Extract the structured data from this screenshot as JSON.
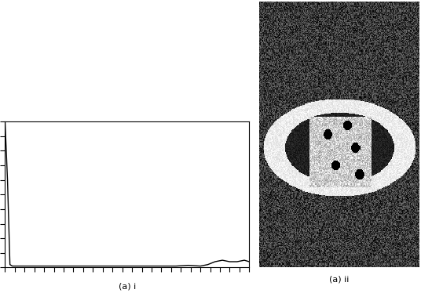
{
  "chart_data": [
    {
      "type": "line",
      "xlabel": "(a) i",
      "color": "#000000",
      "x": [
        0,
        1,
        2,
        3,
        5,
        10,
        20,
        30,
        40,
        50,
        60,
        70,
        75,
        80,
        83,
        86,
        89,
        92,
        95,
        98,
        100
      ],
      "values": [
        100,
        60,
        2,
        1,
        1,
        1,
        1,
        1,
        1,
        1,
        1,
        1,
        1.5,
        1,
        2,
        4,
        5,
        4,
        4,
        5,
        4
      ],
      "xlim": [
        0,
        100
      ],
      "ylim": [
        0,
        100
      ],
      "xticks": [
        0,
        4,
        8,
        12,
        16,
        20,
        24,
        28,
        32,
        36,
        40,
        44,
        48,
        52,
        56,
        60,
        64,
        68,
        72,
        76,
        80,
        84,
        88,
        92,
        96,
        100
      ],
      "yticks": [
        0,
        10,
        20,
        30,
        40,
        50,
        60,
        70,
        80,
        90,
        100
      ],
      "tick_labels": false,
      "grid": false
    },
    {
      "type": "image",
      "xlabel": "(a) ii"
    }
  ]
}
